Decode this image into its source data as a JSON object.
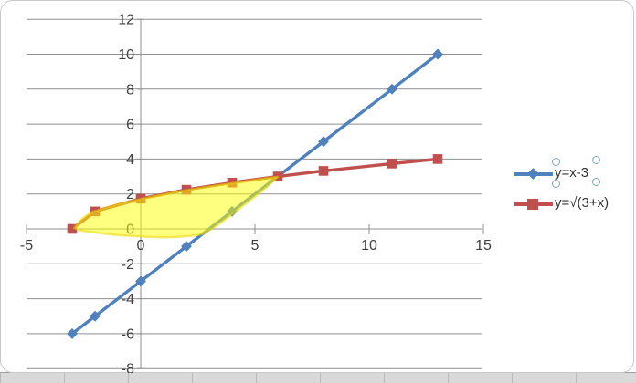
{
  "chart_data": {
    "type": "line",
    "title": "",
    "xlabel": "",
    "ylabel": "",
    "x": [
      -3,
      -2,
      0,
      2,
      4,
      6,
      8,
      11,
      13
    ],
    "series": [
      {
        "name": "y=x-3",
        "color": "#4F81BD",
        "marker": "diamond",
        "values": [
          -6,
          -5,
          -3,
          -1,
          1,
          3,
          5,
          8,
          10
        ]
      },
      {
        "name": "y=√(3+x)",
        "color": "#C0504D",
        "marker": "square",
        "values": [
          0,
          1,
          1.73,
          2.24,
          2.65,
          3,
          3.32,
          3.74,
          4
        ]
      }
    ],
    "xlim": [
      -5,
      15
    ],
    "ylim": [
      -8,
      12
    ],
    "xticks": [
      -5,
      0,
      5,
      10,
      15
    ],
    "yticks": [
      -8,
      -6,
      -4,
      -2,
      0,
      2,
      4,
      6,
      8,
      10,
      12
    ],
    "grid": "horizontal",
    "legend_position": "right",
    "shaded_region": {
      "color": "#FFFF00",
      "opacity": 0.5,
      "upper": [
        [
          -2.9,
          0.05
        ],
        [
          -2.75,
          0.3
        ],
        [
          -2.6,
          0.55
        ],
        [
          -2.35,
          0.78
        ],
        [
          -2.1,
          0.98
        ],
        [
          -1.5,
          1.22
        ],
        [
          -1,
          1.42
        ],
        [
          -0.5,
          1.57
        ],
        [
          0,
          1.7
        ],
        [
          0.5,
          1.84
        ],
        [
          1,
          1.97
        ],
        [
          1.5,
          2.1
        ],
        [
          2,
          2.21
        ],
        [
          2.5,
          2.32
        ],
        [
          3,
          2.42
        ],
        [
          3.5,
          2.52
        ],
        [
          4,
          2.61
        ],
        [
          4.5,
          2.71
        ],
        [
          5,
          2.81
        ],
        [
          5.5,
          2.9
        ],
        [
          6,
          2.98
        ]
      ],
      "lower": [
        [
          5.6,
          2.5
        ],
        [
          5.2,
          2.05
        ],
        [
          4.8,
          1.65
        ],
        [
          4.4,
          1.25
        ],
        [
          4.0,
          0.82
        ],
        [
          3.5,
          0.35
        ],
        [
          3.1,
          0.0
        ],
        [
          2.7,
          -0.3
        ],
        [
          2.35,
          -0.38
        ],
        [
          2,
          -0.42
        ],
        [
          1.5,
          -0.47
        ],
        [
          1,
          -0.48
        ],
        [
          0.5,
          -0.47
        ],
        [
          0,
          -0.44
        ],
        [
          -0.5,
          -0.4
        ],
        [
          -1,
          -0.36
        ],
        [
          -1.5,
          -0.29
        ],
        [
          -2,
          -0.2
        ],
        [
          -2.3,
          -0.16
        ],
        [
          -2.6,
          -0.1
        ],
        [
          -2.75,
          -0.04
        ]
      ]
    }
  },
  "legend": {
    "entries": [
      {
        "label": "y=x-3"
      },
      {
        "label": "y=√(3+x)"
      }
    ],
    "selected_entry": "y=x-3"
  }
}
